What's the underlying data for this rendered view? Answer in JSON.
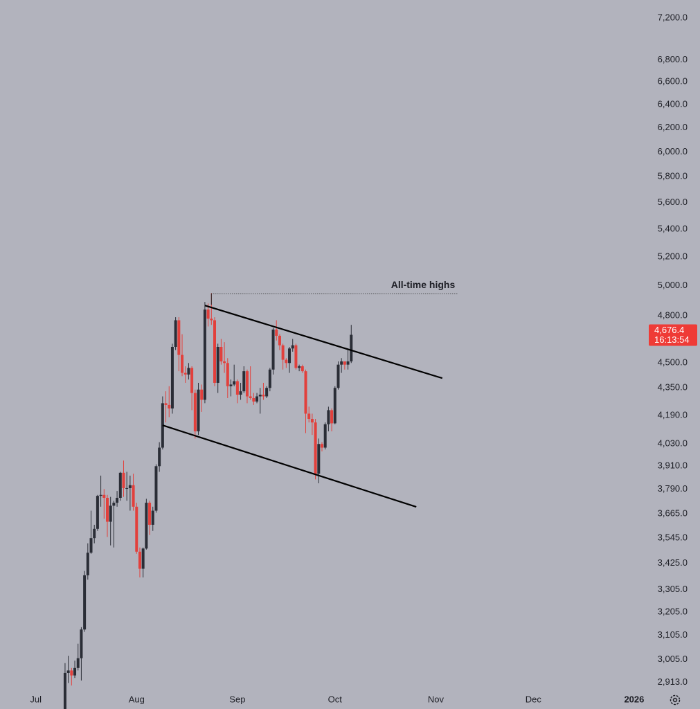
{
  "chart_data": {
    "type": "candlestick",
    "log_scale": true,
    "up_color": "#2a2d36",
    "down_color": "#e2403c",
    "xlim": [
      -11,
      187
    ],
    "xticks": [
      {
        "value": 0,
        "label": "Jul"
      },
      {
        "value": 31,
        "label": "Aug"
      },
      {
        "value": 62,
        "label": "Sep"
      },
      {
        "value": 92,
        "label": "Oct"
      },
      {
        "value": 123,
        "label": "Nov"
      },
      {
        "value": 153,
        "label": "Dec"
      },
      {
        "value": 184,
        "label": "2026"
      }
    ],
    "ylim": [
      2873,
      7379
    ],
    "yticks": [
      {
        "value": 7200,
        "label": "7,200.0"
      },
      {
        "value": 6800,
        "label": "6,800.0"
      },
      {
        "value": 6600,
        "label": "6,600.0"
      },
      {
        "value": 6400,
        "label": "6,400.0"
      },
      {
        "value": 6200,
        "label": "6,200.0"
      },
      {
        "value": 6000,
        "label": "6,000.0"
      },
      {
        "value": 5800,
        "label": "5,800.0"
      },
      {
        "value": 5600,
        "label": "5,600.0"
      },
      {
        "value": 5400,
        "label": "5,400.0"
      },
      {
        "value": 5200,
        "label": "5,200.0"
      },
      {
        "value": 5000,
        "label": "5,000.0"
      },
      {
        "value": 4800,
        "label": "4,800.0"
      },
      {
        "value": 4500,
        "label": "4,500.0"
      },
      {
        "value": 4350,
        "label": "4,350.0"
      },
      {
        "value": 4190,
        "label": "4,190.0"
      },
      {
        "value": 4030,
        "label": "4,030.0"
      },
      {
        "value": 3910,
        "label": "3,910.0"
      },
      {
        "value": 3790,
        "label": "3,790.0"
      },
      {
        "value": 3665,
        "label": "3,665.0"
      },
      {
        "value": 3545,
        "label": "3,545.0"
      },
      {
        "value": 3425,
        "label": "3,425.0"
      },
      {
        "value": 3305,
        "label": "3,305.0"
      },
      {
        "value": 3205,
        "label": "3,205.0"
      },
      {
        "value": 3105,
        "label": "3,105.0"
      },
      {
        "value": 3005,
        "label": "3,005.0"
      },
      {
        "value": 2913,
        "label": "2,913.0"
      }
    ],
    "x": [
      9,
      10,
      11,
      12,
      13,
      14,
      15,
      16,
      17,
      18,
      19,
      20,
      21,
      22,
      23,
      24,
      25,
      26,
      27,
      28,
      29,
      30,
      31,
      32,
      33,
      34,
      35,
      36,
      37,
      38,
      39,
      40,
      41,
      42,
      43,
      44,
      45,
      46,
      47,
      48,
      49,
      50,
      51,
      52,
      53,
      54,
      55,
      56,
      57,
      58,
      59,
      60,
      61,
      62,
      63,
      64,
      65,
      66,
      67,
      68,
      69,
      70,
      71,
      72,
      73,
      74,
      75,
      76,
      77,
      78,
      79,
      80,
      81,
      82,
      83,
      84,
      85,
      86,
      87,
      88,
      89,
      90,
      91,
      92,
      93,
      94,
      95,
      96,
      97
    ],
    "open": [
      2770,
      2950,
      2960,
      2940,
      2970,
      3010,
      3130,
      3370,
      3475,
      3545,
      3590,
      3755,
      3760,
      3745,
      3625,
      3705,
      3720,
      3745,
      3875,
      3795,
      3795,
      3810,
      3700,
      3480,
      3400,
      3495,
      3720,
      3610,
      3680,
      3910,
      4010,
      4260,
      4250,
      4230,
      4600,
      4770,
      4550,
      4440,
      4430,
      4470,
      4320,
      4100,
      4340,
      4280,
      4840,
      4780,
      4770,
      4380,
      4600,
      4510,
      4500,
      4360,
      4370,
      4390,
      4310,
      4330,
      4450,
      4300,
      4290,
      4270,
      4300,
      4310,
      4300,
      4350,
      4460,
      4710,
      4670,
      4610,
      4520,
      4500,
      4590,
      4610,
      4470,
      4480,
      4450,
      4200,
      4170,
      4150,
      3870,
      4030,
      4010,
      4140,
      4220,
      4145,
      4350,
      4490,
      4510,
      4490,
      4510
    ],
    "high": [
      2990,
      3020,
      2970,
      3000,
      3070,
      3140,
      3390,
      3520,
      3680,
      3610,
      3760,
      3860,
      3790,
      3760,
      3750,
      3730,
      3780,
      3880,
      3940,
      3880,
      3860,
      3870,
      3720,
      3500,
      3500,
      3740,
      3730,
      3700,
      3920,
      4040,
      4300,
      4330,
      4360,
      4620,
      4790,
      4790,
      4680,
      4480,
      4500,
      4480,
      4340,
      4380,
      4370,
      4890,
      4880,
      4950,
      4790,
      4620,
      4650,
      4630,
      4530,
      4400,
      4490,
      4400,
      4380,
      4480,
      4460,
      4480,
      4320,
      4320,
      4350,
      4380,
      4360,
      4470,
      4720,
      4770,
      4680,
      4620,
      4530,
      4600,
      4650,
      4620,
      4490,
      4490,
      4460,
      4240,
      4200,
      4170,
      4060,
      4040,
      4150,
      4240,
      4230,
      4360,
      4510,
      4530,
      4510,
      4590,
      4740
    ],
    "low": [
      2740,
      2910,
      2900,
      2930,
      2960,
      2920,
      3120,
      3350,
      3470,
      3520,
      3580,
      3700,
      3640,
      3550,
      3510,
      3500,
      3700,
      3730,
      3750,
      3730,
      3680,
      3680,
      3470,
      3360,
      3360,
      3490,
      3560,
      3580,
      3670,
      3880,
      4000,
      4150,
      4180,
      4200,
      4580,
      4450,
      4420,
      4380,
      4400,
      4220,
      4060,
      4080,
      4210,
      4260,
      4730,
      4740,
      4360,
      4320,
      4490,
      4440,
      4290,
      4300,
      4360,
      4260,
      4280,
      4320,
      4260,
      4280,
      4250,
      4260,
      4200,
      4280,
      4290,
      4330,
      4430,
      4640,
      4580,
      4460,
      4470,
      4440,
      4570,
      4460,
      4450,
      4440,
      4090,
      4150,
      4080,
      3840,
      3820,
      3990,
      4000,
      4100,
      4100,
      4140,
      4340,
      4440,
      4460,
      4460,
      4500
    ],
    "close": [
      2950,
      2960,
      2940,
      2970,
      3010,
      3130,
      3370,
      3475,
      3545,
      3590,
      3755,
      3760,
      3745,
      3625,
      3705,
      3720,
      3745,
      3875,
      3795,
      3795,
      3810,
      3700,
      3480,
      3400,
      3495,
      3720,
      3610,
      3680,
      3910,
      4010,
      4260,
      4250,
      4230,
      4600,
      4770,
      4550,
      4440,
      4430,
      4470,
      4320,
      4100,
      4340,
      4280,
      4840,
      4780,
      4770,
      4380,
      4600,
      4510,
      4500,
      4360,
      4370,
      4390,
      4310,
      4330,
      4450,
      4300,
      4290,
      4270,
      4300,
      4310,
      4300,
      4350,
      4460,
      4710,
      4670,
      4610,
      4520,
      4500,
      4590,
      4610,
      4470,
      4480,
      4450,
      4200,
      4170,
      4150,
      3870,
      4030,
      4010,
      4140,
      4220,
      4145,
      4350,
      4490,
      4510,
      4490,
      4510,
      4676.4
    ],
    "trendlines": [
      {
        "x": [
          52,
          125
        ],
        "y": [
          4867,
          4408
        ]
      },
      {
        "x": [
          39,
          117
        ],
        "y": [
          4134,
          3699
        ]
      }
    ],
    "level": {
      "text": "All-time highs",
      "value": 4946,
      "x": [
        54,
        130
      ]
    },
    "last_price": {
      "value": 4676.4,
      "label": "4,676.4",
      "countdown": "16:13:54",
      "color": "#ef3b36"
    }
  }
}
